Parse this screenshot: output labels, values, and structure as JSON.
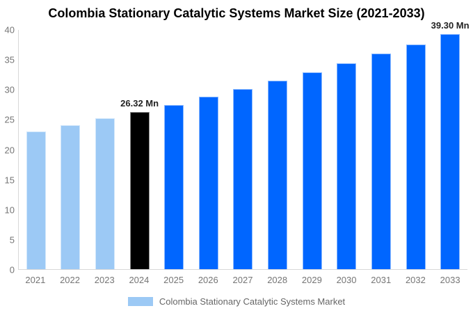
{
  "title": "Colombia Stationary Catalytic Systems Market Size (2021-2033)",
  "colors": {
    "historical_bar": "#9CC9F5",
    "highlight_bar": "#000000",
    "forecast_bar": "#0066FF",
    "axis_line": "#D8D8D8",
    "tick_text": "#757575",
    "legend_text": "#666666",
    "annotation_text": "#222222",
    "title_text": "#000000",
    "background": "#FFFFFF"
  },
  "chart_data": {
    "type": "bar",
    "title": "Colombia Stationary Catalytic Systems Market Size (2021-2033)",
    "xlabel": "",
    "ylabel": "",
    "unit": "Mn",
    "categories": [
      "2021",
      "2022",
      "2023",
      "2024",
      "2025",
      "2026",
      "2027",
      "2028",
      "2029",
      "2030",
      "2031",
      "2032",
      "2033"
    ],
    "series": [
      {
        "name": "Colombia Stationary Catalytic Systems Market",
        "values": [
          23.0,
          24.1,
          25.2,
          26.32,
          27.5,
          28.8,
          30.1,
          31.5,
          32.9,
          34.4,
          36.0,
          37.6,
          39.3
        ]
      }
    ],
    "bar_colors": [
      "#9CC9F5",
      "#9CC9F5",
      "#9CC9F5",
      "#000000",
      "#0066FF",
      "#0066FF",
      "#0066FF",
      "#0066FF",
      "#0066FF",
      "#0066FF",
      "#0066FF",
      "#0066FF",
      "#0066FF"
    ],
    "annotations": [
      {
        "category": "2024",
        "text": "26.32 Mn"
      },
      {
        "category": "2033",
        "text": "39.30 Mn"
      }
    ],
    "ylim": [
      0,
      40
    ],
    "yticks": [
      0,
      5,
      10,
      15,
      20,
      25,
      30,
      35,
      40
    ],
    "grid": false,
    "legend_position": "bottom"
  },
  "legend": {
    "label": "Colombia Stationary Catalytic Systems Market",
    "swatch_color": "#9CC9F5"
  }
}
